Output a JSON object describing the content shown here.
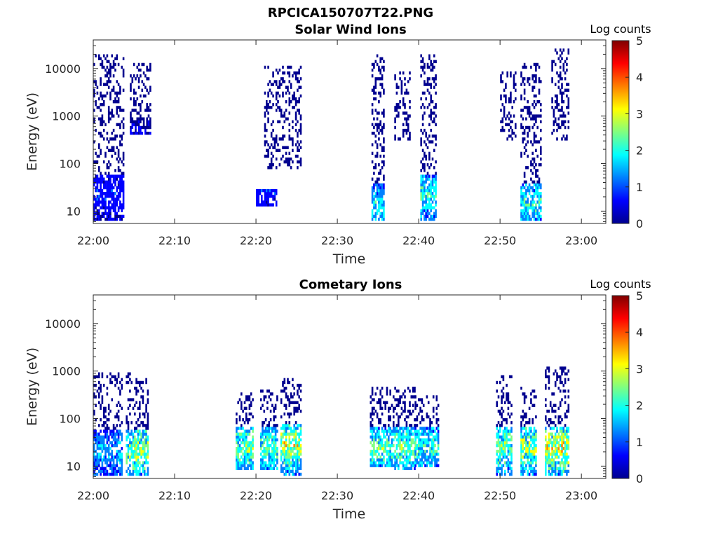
{
  "figure_title": "RPCICA150707T22.PNG",
  "colormap": [
    "#00008f",
    "#0000ff",
    "#0080ff",
    "#00ffff",
    "#80ff80",
    "#ffff00",
    "#ff8000",
    "#ff0000",
    "#800000"
  ],
  "chart_data": [
    {
      "type": "heatmap",
      "title": "Solar Wind Ions",
      "xlabel": "Time",
      "ylabel": "Energy (eV)",
      "yscale": "log",
      "ylim": [
        5.5,
        40000
      ],
      "xlim": [
        "22:00",
        "23:03"
      ],
      "xticks": [
        "22:00",
        "22:10",
        "22:20",
        "22:30",
        "22:40",
        "22:50",
        "23:00"
      ],
      "yticks": [
        "10",
        "100",
        "1000",
        "10000"
      ],
      "colorbar": {
        "label": "Log counts",
        "range": [
          0,
          5
        ],
        "ticks": [
          "0",
          "1",
          "2",
          "3",
          "4",
          "5"
        ]
      },
      "clusters": [
        {
          "t_start": 0.0,
          "t_end": 3.8,
          "e_min": 6,
          "e_max": 20000,
          "sparse_above": 60,
          "peak_log": 1.2
        },
        {
          "t_start": 4.5,
          "t_end": 7.0,
          "e_min": 400,
          "e_max": 14000,
          "sparse_above": 1000,
          "peak_log": 0.8
        },
        {
          "t_start": 20.0,
          "t_end": 22.5,
          "e_min": 12,
          "e_max": 30,
          "sparse_above": 100,
          "peak_log": 1.3
        },
        {
          "t_start": 21.0,
          "t_end": 25.5,
          "e_min": 80,
          "e_max": 12000,
          "sparse_above": 80,
          "peak_log": 0.7
        },
        {
          "t_start": 34.2,
          "t_end": 35.8,
          "e_min": 6,
          "e_max": 20000,
          "sparse_above": 40,
          "peak_log": 2.3
        },
        {
          "t_start": 37.0,
          "t_end": 39.0,
          "e_min": 300,
          "e_max": 9000,
          "sparse_above": 300,
          "peak_log": 0.8
        },
        {
          "t_start": 40.2,
          "t_end": 42.2,
          "e_min": 6,
          "e_max": 20000,
          "sparse_above": 60,
          "peak_log": 2.6
        },
        {
          "t_start": 50.0,
          "t_end": 52.0,
          "e_min": 300,
          "e_max": 9000,
          "sparse_above": 300,
          "peak_log": 0.8
        },
        {
          "t_start": 52.5,
          "t_end": 55.0,
          "e_min": 6,
          "e_max": 14000,
          "sparse_above": 40,
          "peak_log": 2.5
        },
        {
          "t_start": 56.3,
          "t_end": 58.5,
          "e_min": 300,
          "e_max": 25000,
          "sparse_above": 300,
          "peak_log": 0.8
        }
      ]
    },
    {
      "type": "heatmap",
      "title": "Cometary Ions",
      "xlabel": "Time",
      "ylabel": "Energy (eV)",
      "yscale": "log",
      "ylim": [
        5.5,
        40000
      ],
      "xlim": [
        "22:00",
        "23:03"
      ],
      "xticks": [
        "22:00",
        "22:10",
        "22:20",
        "22:30",
        "22:40",
        "22:50",
        "23:00"
      ],
      "yticks": [
        "10",
        "100",
        "1000",
        "10000"
      ],
      "colorbar": {
        "label": "Log counts",
        "range": [
          0,
          5
        ],
        "ticks": [
          "0",
          "1",
          "2",
          "3",
          "4",
          "5"
        ]
      },
      "clusters": [
        {
          "t_start": 0.0,
          "t_end": 3.5,
          "e_min": 6,
          "e_max": 900,
          "sparse_above": 55,
          "peak_log": 2.0
        },
        {
          "t_start": 4.0,
          "t_end": 6.8,
          "e_min": 6,
          "e_max": 900,
          "sparse_above": 60,
          "peak_log": 3.2
        },
        {
          "t_start": 17.5,
          "t_end": 19.5,
          "e_min": 8,
          "e_max": 350,
          "sparse_above": 70,
          "peak_log": 3.0
        },
        {
          "t_start": 20.5,
          "t_end": 22.5,
          "e_min": 8,
          "e_max": 400,
          "sparse_above": 70,
          "peak_log": 2.8
        },
        {
          "t_start": 23.0,
          "t_end": 25.5,
          "e_min": 6,
          "e_max": 750,
          "sparse_above": 80,
          "peak_log": 3.4
        },
        {
          "t_start": 34.0,
          "t_end": 37.0,
          "e_min": 10,
          "e_max": 500,
          "sparse_above": 70,
          "peak_log": 2.8
        },
        {
          "t_start": 37.0,
          "t_end": 39.5,
          "e_min": 8,
          "e_max": 450,
          "sparse_above": 70,
          "peak_log": 3.0
        },
        {
          "t_start": 39.5,
          "t_end": 42.5,
          "e_min": 10,
          "e_max": 300,
          "sparse_above": 70,
          "peak_log": 2.6
        },
        {
          "t_start": 49.5,
          "t_end": 51.5,
          "e_min": 6,
          "e_max": 800,
          "sparse_above": 70,
          "peak_log": 3.0
        },
        {
          "t_start": 52.5,
          "t_end": 54.5,
          "e_min": 6,
          "e_max": 500,
          "sparse_above": 70,
          "peak_log": 3.2
        },
        {
          "t_start": 55.5,
          "t_end": 58.5,
          "e_min": 6,
          "e_max": 1300,
          "sparse_above": 70,
          "peak_log": 3.6
        }
      ]
    }
  ]
}
